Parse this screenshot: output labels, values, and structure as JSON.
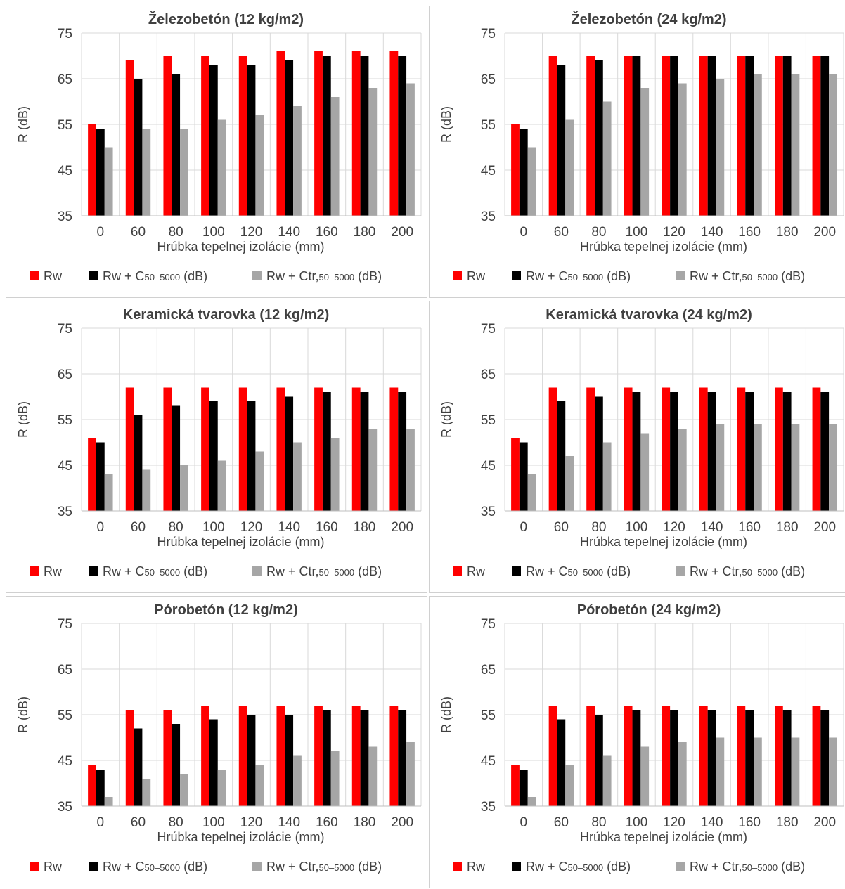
{
  "chart_data": [
    {
      "type": "bar",
      "title": "Železobetón (12 kg/m2)",
      "xlabel": "Hrúbka tepelnej izolácie (mm)",
      "ylabel": "R (dB)",
      "ylim": [
        35,
        75
      ],
      "yticks": [
        35,
        45,
        55,
        65,
        75
      ],
      "categories": [
        "0",
        "60",
        "80",
        "100",
        "120",
        "140",
        "160",
        "180",
        "200"
      ],
      "grid": true,
      "legend_position": "bottom",
      "series": [
        {
          "name": "Rw",
          "color": "#ff0000",
          "values": [
            55,
            69,
            70,
            70,
            70,
            71,
            71,
            71,
            71
          ]
        },
        {
          "name": "Rw + C50-5000 (dB)",
          "color": "#000000",
          "values": [
            54,
            65,
            66,
            68,
            68,
            69,
            70,
            70,
            70
          ]
        },
        {
          "name": "Rw + Ctr,50-5000 (dB)",
          "color": "#a6a6a6",
          "values": [
            50,
            54,
            54,
            56,
            57,
            59,
            61,
            63,
            64
          ]
        }
      ]
    },
    {
      "type": "bar",
      "title": "Železobetón (24 kg/m2)",
      "xlabel": "Hrúbka tepelnej izolácie (mm)",
      "ylabel": "R (dB)",
      "ylim": [
        35,
        75
      ],
      "yticks": [
        35,
        45,
        55,
        65,
        75
      ],
      "categories": [
        "0",
        "60",
        "80",
        "100",
        "120",
        "140",
        "160",
        "180",
        "200"
      ],
      "grid": true,
      "legend_position": "bottom",
      "series": [
        {
          "name": "Rw",
          "color": "#ff0000",
          "values": [
            55,
            70,
            70,
            70,
            70,
            70,
            70,
            70,
            70
          ]
        },
        {
          "name": "Rw + C50-5000 (dB)",
          "color": "#000000",
          "values": [
            54,
            68,
            69,
            70,
            70,
            70,
            70,
            70,
            70
          ]
        },
        {
          "name": "Rw + Ctr,50-5000 (dB)",
          "color": "#a6a6a6",
          "values": [
            50,
            56,
            60,
            63,
            64,
            65,
            66,
            66,
            66
          ]
        }
      ]
    },
    {
      "type": "bar",
      "title": "Keramická tvarovka (12 kg/m2)",
      "xlabel": "Hrúbka tepelnej izolácie (mm)",
      "ylabel": "R (dB)",
      "ylim": [
        35,
        75
      ],
      "yticks": [
        35,
        45,
        55,
        65,
        75
      ],
      "categories": [
        "0",
        "60",
        "80",
        "100",
        "120",
        "140",
        "160",
        "180",
        "200"
      ],
      "grid": true,
      "legend_position": "bottom",
      "series": [
        {
          "name": "Rw",
          "color": "#ff0000",
          "values": [
            51,
            62,
            62,
            62,
            62,
            62,
            62,
            62,
            62
          ]
        },
        {
          "name": "Rw + C50-5000 (dB)",
          "color": "#000000",
          "values": [
            50,
            56,
            58,
            59,
            59,
            60,
            61,
            61,
            61
          ]
        },
        {
          "name": "Rw + Ctr,50-5000 (dB)",
          "color": "#a6a6a6",
          "values": [
            43,
            44,
            45,
            46,
            48,
            50,
            51,
            53,
            53
          ]
        }
      ]
    },
    {
      "type": "bar",
      "title": "Keramická tvarovka (24 kg/m2)",
      "xlabel": "Hrúbka tepelnej izolácie (mm)",
      "ylabel": "R (dB)",
      "ylim": [
        35,
        75
      ],
      "yticks": [
        35,
        45,
        55,
        65,
        75
      ],
      "categories": [
        "0",
        "60",
        "80",
        "100",
        "120",
        "140",
        "160",
        "180",
        "200"
      ],
      "grid": true,
      "legend_position": "bottom",
      "series": [
        {
          "name": "Rw",
          "color": "#ff0000",
          "values": [
            51,
            62,
            62,
            62,
            62,
            62,
            62,
            62,
            62
          ]
        },
        {
          "name": "Rw + C50-5000 (dB)",
          "color": "#000000",
          "values": [
            50,
            59,
            60,
            61,
            61,
            61,
            61,
            61,
            61
          ]
        },
        {
          "name": "Rw + Ctr,50-5000 (dB)",
          "color": "#a6a6a6",
          "values": [
            43,
            47,
            50,
            52,
            53,
            54,
            54,
            54,
            54
          ]
        }
      ]
    },
    {
      "type": "bar",
      "title": "Pórobetón (12 kg/m2)",
      "xlabel": "Hrúbka tepelnej izolácie (mm)",
      "ylabel": "R (dB)",
      "ylim": [
        35,
        75
      ],
      "yticks": [
        35,
        45,
        55,
        65,
        75
      ],
      "categories": [
        "0",
        "60",
        "80",
        "100",
        "120",
        "140",
        "160",
        "180",
        "200"
      ],
      "grid": true,
      "legend_position": "bottom",
      "series": [
        {
          "name": "Rw",
          "color": "#ff0000",
          "values": [
            44,
            56,
            56,
            57,
            57,
            57,
            57,
            57,
            57
          ]
        },
        {
          "name": "Rw + C50-5000 (dB)",
          "color": "#000000",
          "values": [
            43,
            52,
            53,
            54,
            55,
            55,
            56,
            56,
            56
          ]
        },
        {
          "name": "Rw + Ctr,50-5000 (dB)",
          "color": "#a6a6a6",
          "values": [
            37,
            41,
            42,
            43,
            44,
            46,
            47,
            48,
            49
          ]
        }
      ]
    },
    {
      "type": "bar",
      "title": "Pórobetón (24 kg/m2)",
      "xlabel": "Hrúbka tepelnej izolácie (mm)",
      "ylabel": "R (dB)",
      "ylim": [
        35,
        75
      ],
      "yticks": [
        35,
        45,
        55,
        65,
        75
      ],
      "categories": [
        "0",
        "60",
        "80",
        "100",
        "120",
        "140",
        "160",
        "180",
        "200"
      ],
      "grid": true,
      "legend_position": "bottom",
      "series": [
        {
          "name": "Rw",
          "color": "#ff0000",
          "values": [
            44,
            57,
            57,
            57,
            57,
            57,
            57,
            57,
            57
          ]
        },
        {
          "name": "Rw + C50-5000 (dB)",
          "color": "#000000",
          "values": [
            43,
            54,
            55,
            56,
            56,
            56,
            56,
            56,
            56
          ]
        },
        {
          "name": "Rw + Ctr,50-5000 (dB)",
          "color": "#a6a6a6",
          "values": [
            37,
            44,
            46,
            48,
            49,
            50,
            50,
            50,
            50
          ]
        }
      ]
    }
  ]
}
